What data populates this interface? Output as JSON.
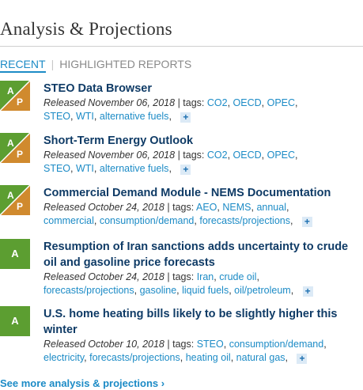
{
  "header": {
    "title": "Analysis & Projections"
  },
  "tabs": {
    "recent": "RECENT",
    "separator": "|",
    "highlighted": "HIGHLIGHTED REPORTS"
  },
  "badge_letters": {
    "a": "A",
    "p": "P"
  },
  "colors": {
    "badge_green": "#5c9e31",
    "badge_orange": "#d08a2e",
    "link_blue": "#1c8bc6",
    "title_navy": "#0f3b66"
  },
  "items": [
    {
      "title": "STEO Data Browser",
      "released": "Released November 06, 2018",
      "tags_label": "| tags:",
      "tags": [
        "CO2",
        "OECD",
        "OPEC",
        "STEO",
        "WTI",
        "alternative fuels"
      ],
      "badge": "A/P"
    },
    {
      "title": "Short-Term Energy Outlook",
      "released": "Released November 06, 2018",
      "tags_label": "| tags:",
      "tags": [
        "CO2",
        "OECD",
        "OPEC",
        "STEO",
        "WTI",
        "alternative fuels"
      ],
      "badge": "A/P"
    },
    {
      "title": "Commercial Demand Module - NEMS Documentation",
      "released": "Released October 24, 2018",
      "tags_label": "| tags:",
      "tags": [
        "AEO",
        "NEMS",
        "annual",
        "commercial",
        "consumption/demand",
        "forecasts/projections"
      ],
      "badge": "A/P"
    },
    {
      "title": "Resumption of Iran sanctions adds uncertainty to crude oil and gasoline price forecasts",
      "released": "Released October 24, 2018",
      "tags_label": "| tags:",
      "tags": [
        "Iran",
        "crude oil",
        "forecasts/projections",
        "gasoline",
        "liquid fuels",
        "oil/petroleum"
      ],
      "badge": "A"
    },
    {
      "title": "U.S. home heating bills likely to be slightly higher this winter",
      "released": "Released October 10, 2018",
      "tags_label": "| tags:",
      "tags": [
        "STEO",
        "consumption/demand",
        "electricity",
        "forecasts/projections",
        "heating oil",
        "natural gas"
      ],
      "badge": "A"
    }
  ],
  "plus_label": "+",
  "see_more": "See more analysis & projections ›"
}
